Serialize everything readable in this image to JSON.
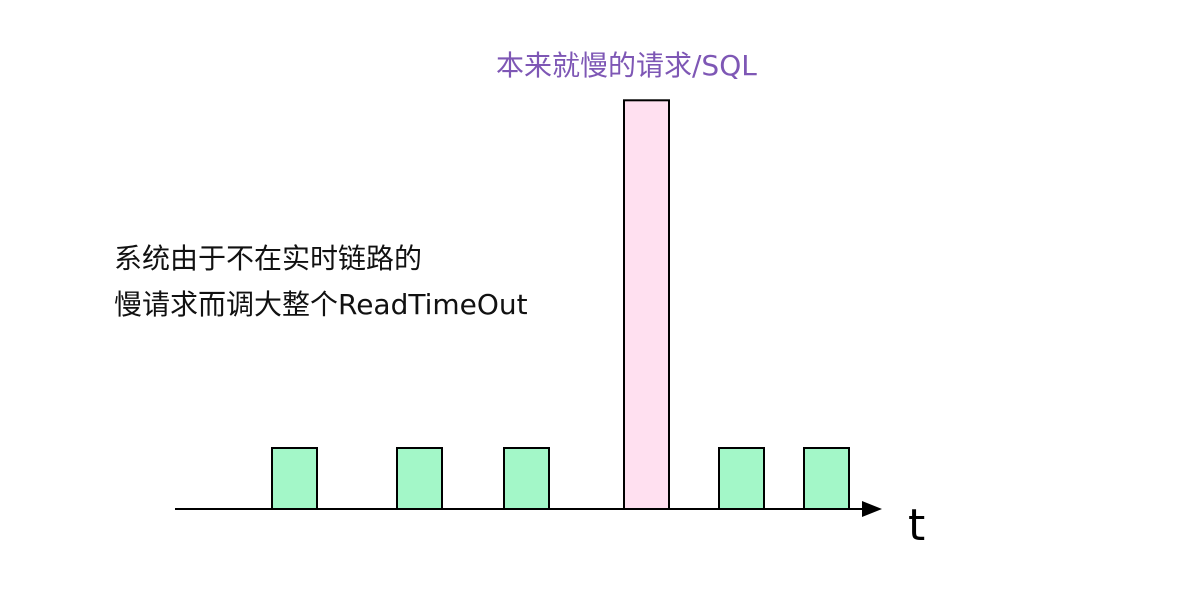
{
  "annotation": {
    "lines": [
      "系统由于不在实时链路的",
      "慢请求而调大整个ReadTimeOut"
    ]
  },
  "spike": {
    "label": "本来就慢的请求/SQL",
    "label_color": "#7e57b5",
    "fill": "#ffe0f0"
  },
  "axis": {
    "label": "t"
  },
  "normal_bar_fill": "#a3f7c8",
  "bars": [
    {
      "kind": "normal",
      "height": 1
    },
    {
      "kind": "normal",
      "height": 1
    },
    {
      "kind": "normal",
      "height": 1
    },
    {
      "kind": "slow",
      "height": 6.7
    },
    {
      "kind": "normal",
      "height": 1
    },
    {
      "kind": "normal",
      "height": 1
    }
  ]
}
